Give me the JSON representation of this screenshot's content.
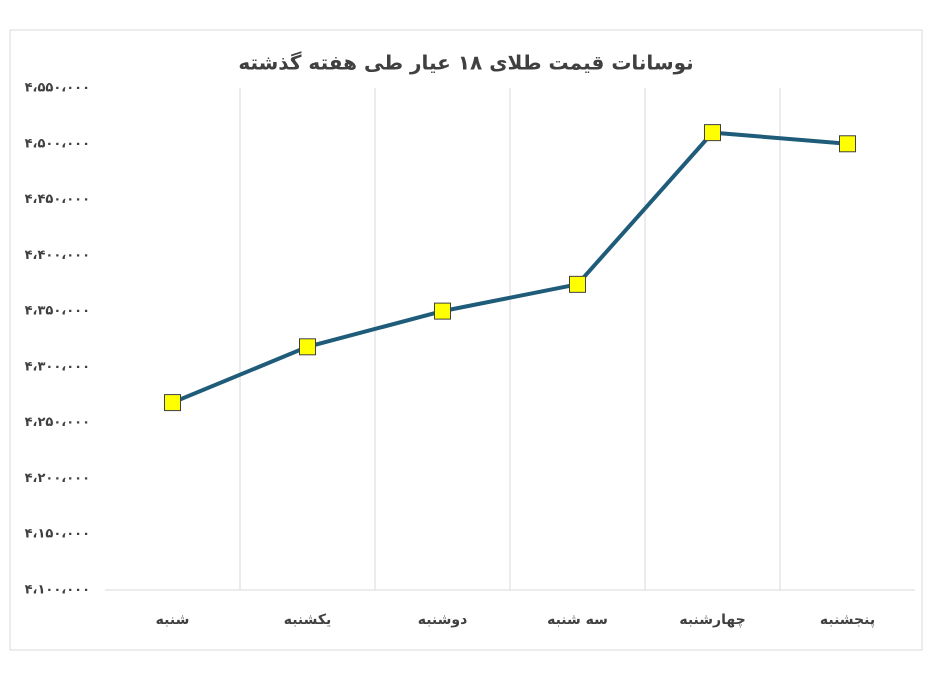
{
  "chart_data": {
    "type": "line",
    "title": "نوسانات قیمت طلای ۱۸ عیار طی هفته گذشته",
    "categories": [
      "شنبه",
      "یکشنبه",
      "دوشنبه",
      "سه شنبه",
      "چهارشنبه",
      "پنجشنبه"
    ],
    "series": [
      {
        "color": "#1f5c7a",
        "marker_color": "#ffff00",
        "values": [
          4268000,
          4318000,
          4350000,
          4374000,
          4510000,
          4500000
        ]
      }
    ],
    "ylim": [
      4100000,
      4550000
    ],
    "yticks": [
      {
        "value": 4100000,
        "label": "۴،۱۰۰،۰۰۰"
      },
      {
        "value": 4150000,
        "label": "۴،۱۵۰،۰۰۰"
      },
      {
        "value": 4200000,
        "label": "۴،۲۰۰،۰۰۰"
      },
      {
        "value": 4250000,
        "label": "۴،۲۵۰،۰۰۰"
      },
      {
        "value": 4300000,
        "label": "۴،۳۰۰،۰۰۰"
      },
      {
        "value": 4350000,
        "label": "۴،۳۵۰،۰۰۰"
      },
      {
        "value": 4400000,
        "label": "۴،۴۰۰،۰۰۰"
      },
      {
        "value": 4450000,
        "label": "۴،۴۵۰،۰۰۰"
      },
      {
        "value": 4500000,
        "label": "۴،۵۰۰،۰۰۰"
      },
      {
        "value": 4550000,
        "label": "۴،۵۵۰،۰۰۰"
      }
    ]
  }
}
